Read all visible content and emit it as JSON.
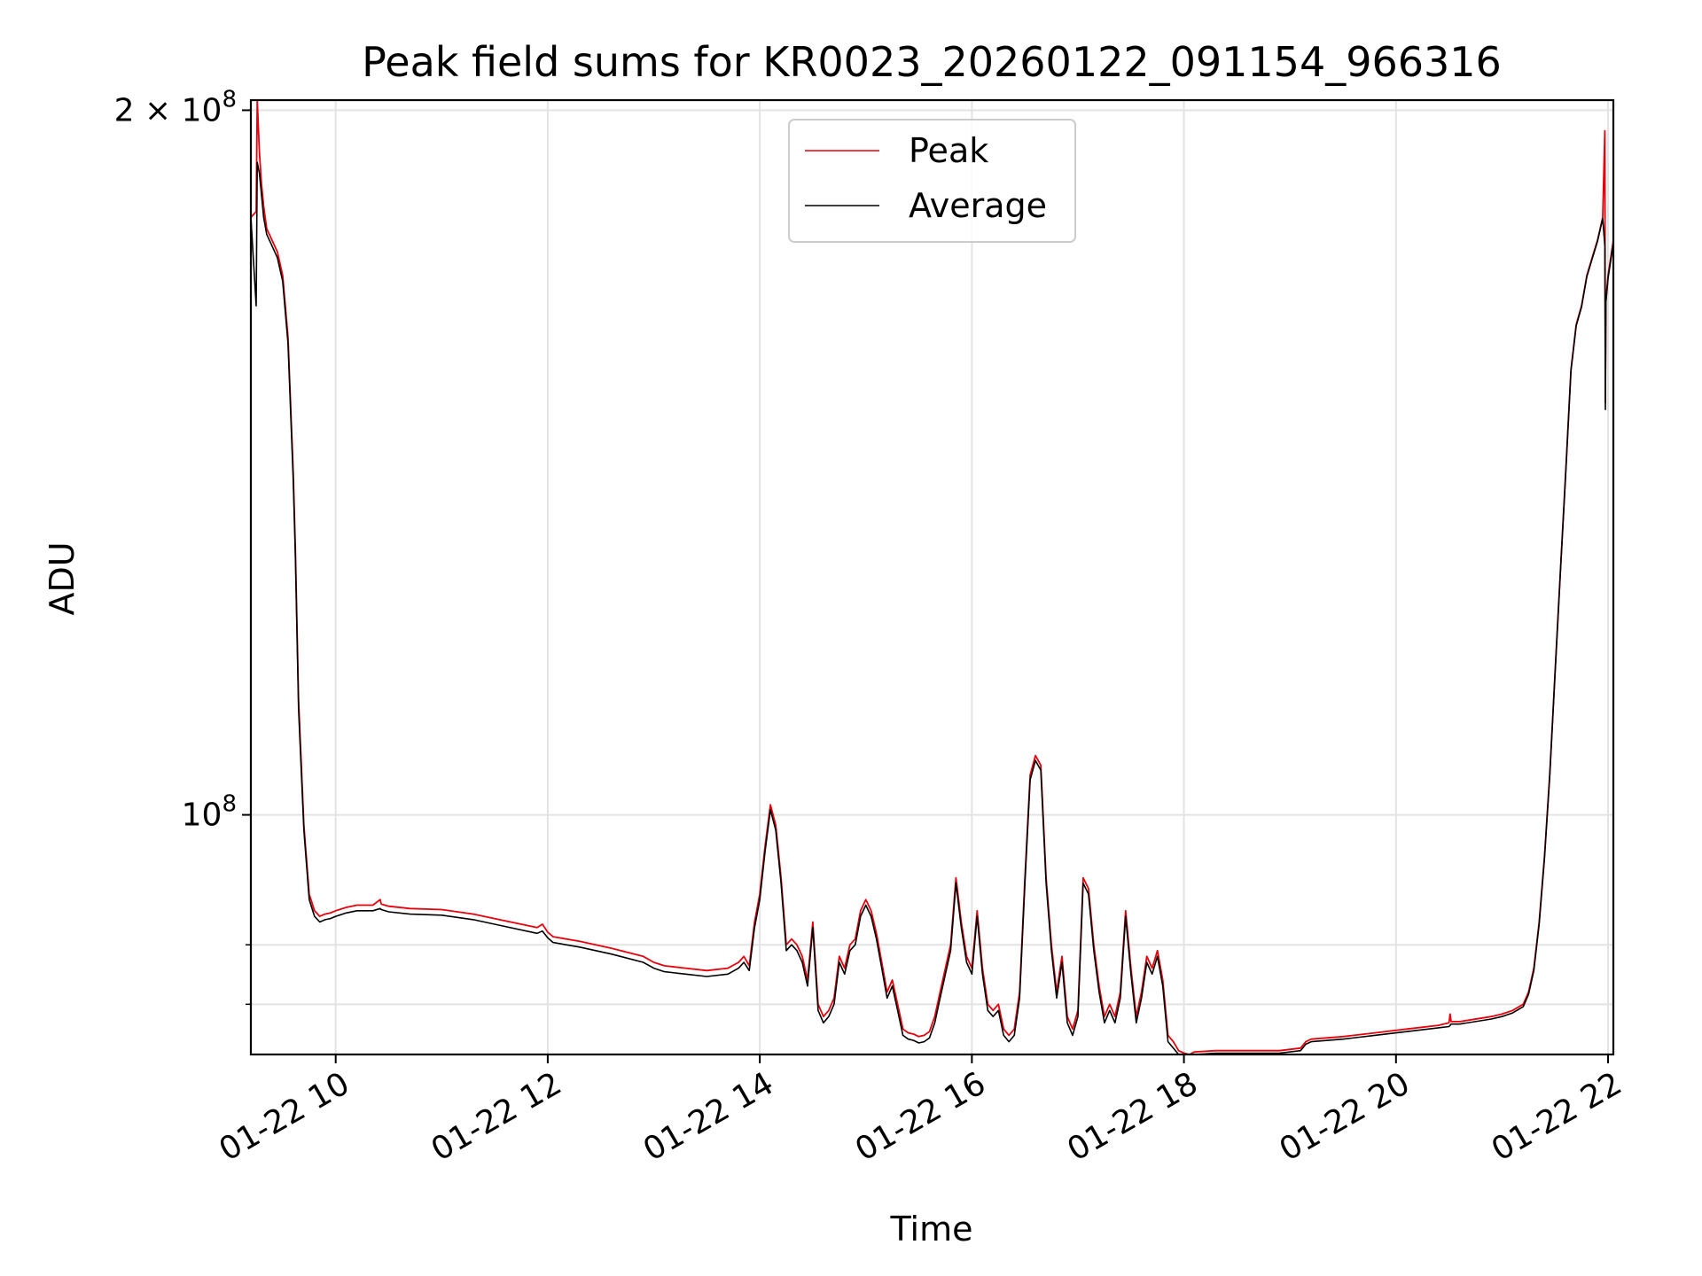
{
  "chart_data": {
    "type": "line",
    "title": "Peak field sums for KR0023_20260122_091154_966316",
    "xlabel": "Time",
    "ylabel": "ADU",
    "yscale": "log",
    "xlim": [
      9.2,
      22.05
    ],
    "ylim": [
      79000000.0,
      202000000.0
    ],
    "grid": true,
    "legend_position": "top-center",
    "x_ticks": [
      {
        "value": 10,
        "label": "01-22 10"
      },
      {
        "value": 12,
        "label": "01-22 12"
      },
      {
        "value": 14,
        "label": "01-22 14"
      },
      {
        "value": 16,
        "label": "01-22 16"
      },
      {
        "value": 18,
        "label": "01-22 18"
      },
      {
        "value": 20,
        "label": "01-22 20"
      },
      {
        "value": 22,
        "label": "01-22 22"
      }
    ],
    "y_major_ticks": [
      {
        "value": 100000000,
        "base": "10",
        "exp": "8",
        "mult": ""
      },
      {
        "value": 200000000,
        "base": "10",
        "exp": "8",
        "mult": "2 × "
      }
    ],
    "y_minor_gridlines": [
      83000000,
      88000000
    ],
    "series": [
      {
        "name": "Peak",
        "color": "#e8000b",
        "x": [
          9.2,
          9.25,
          9.26,
          9.28,
          9.3,
          9.32,
          9.35,
          9.4,
          9.45,
          9.5,
          9.55,
          9.6,
          9.62,
          9.65,
          9.7,
          9.75,
          9.8,
          9.85,
          9.9,
          9.95,
          10.0,
          10.1,
          10.2,
          10.35,
          10.42,
          10.43,
          10.5,
          10.7,
          11.0,
          11.3,
          11.6,
          11.9,
          11.95,
          12.0,
          12.05,
          12.3,
          12.6,
          12.9,
          13.0,
          13.1,
          13.3,
          13.5,
          13.7,
          13.8,
          13.85,
          13.9,
          13.95,
          14.0,
          14.05,
          14.1,
          14.15,
          14.2,
          14.25,
          14.3,
          14.35,
          14.4,
          14.45,
          14.5,
          14.55,
          14.6,
          14.65,
          14.7,
          14.75,
          14.8,
          14.85,
          14.9,
          14.95,
          15.0,
          15.05,
          15.1,
          15.15,
          15.2,
          15.25,
          15.3,
          15.35,
          15.4,
          15.45,
          15.5,
          15.55,
          15.6,
          15.65,
          15.7,
          15.75,
          15.8,
          15.85,
          15.9,
          15.95,
          16.0,
          16.05,
          16.1,
          16.15,
          16.2,
          16.25,
          16.3,
          16.35,
          16.4,
          16.45,
          16.5,
          16.55,
          16.6,
          16.65,
          16.7,
          16.75,
          16.8,
          16.85,
          16.9,
          16.95,
          17.0,
          17.05,
          17.1,
          17.15,
          17.2,
          17.25,
          17.3,
          17.35,
          17.4,
          17.45,
          17.5,
          17.55,
          17.6,
          17.65,
          17.7,
          17.75,
          17.8,
          17.85,
          17.9,
          17.95,
          18.0,
          18.05,
          18.1,
          18.3,
          18.6,
          18.9,
          19.1,
          19.15,
          19.2,
          19.5,
          19.8,
          20.1,
          20.4,
          20.5,
          20.51,
          20.52,
          20.6,
          20.9,
          21.0,
          21.1,
          21.2,
          21.25,
          21.3,
          21.35,
          21.4,
          21.45,
          21.5,
          21.55,
          21.6,
          21.65,
          21.7,
          21.75,
          21.8,
          21.85,
          21.9,
          21.95,
          21.97,
          21.975,
          21.98,
          22.0,
          22.05
        ],
        "y": [
          180000000,
          181000000,
          202000000,
          192000000,
          186000000,
          182000000,
          178000000,
          176000000,
          174000000,
          170000000,
          160000000,
          140000000,
          130000000,
          112000000,
          99000000,
          92500000,
          91000000,
          90500000,
          90700000,
          90800000,
          91000000,
          91300000,
          91500000,
          91500000,
          92000000,
          91600000,
          91400000,
          91200000,
          91100000,
          90700000,
          90100000,
          89500000,
          89800000,
          89100000,
          88700000,
          88300000,
          87700000,
          87000000,
          86500000,
          86200000,
          86000000,
          85800000,
          86000000,
          86500000,
          87000000,
          86200000,
          90000000,
          92500000,
          97000000,
          101000000,
          99000000,
          94000000,
          88000000,
          88500000,
          88000000,
          87000000,
          85000000,
          90000000,
          83000000,
          82000000,
          82500000,
          83500000,
          87000000,
          86000000,
          88000000,
          88500000,
          91000000,
          92000000,
          91000000,
          89000000,
          86500000,
          84000000,
          85000000,
          83000000,
          81000000,
          80700000,
          80600000,
          80400000,
          80500000,
          80800000,
          82000000,
          84000000,
          86000000,
          88000000,
          94000000,
          90000000,
          87000000,
          86000000,
          91000000,
          86000000,
          83000000,
          82500000,
          83000000,
          81000000,
          80500000,
          81000000,
          84000000,
          94000000,
          104000000,
          106000000,
          105000000,
          94000000,
          88000000,
          84000000,
          87000000,
          82000000,
          81000000,
          82500000,
          94000000,
          93000000,
          88000000,
          84500000,
          82000000,
          83000000,
          82000000,
          84000000,
          91000000,
          86000000,
          82000000,
          84000000,
          87000000,
          86000000,
          87500000,
          85000000,
          80500000,
          80000000,
          79300000,
          79100000,
          79000000,
          79200000,
          79300000,
          79300000,
          79300000,
          79500000,
          80000000,
          80200000,
          80400000,
          80700000,
          81000000,
          81300000,
          81500000,
          82200000,
          81600000,
          81600000,
          82000000,
          82200000,
          82500000,
          83000000,
          84000000,
          86000000,
          90000000,
          96000000,
          104000000,
          115000000,
          127000000,
          140000000,
          155000000,
          162000000,
          165000000,
          170000000,
          173000000,
          176000000,
          180000000,
          196000000,
          150000000,
          166000000,
          170000000,
          176000000
        ]
      },
      {
        "name": "Average",
        "color": "#000000",
        "x": [
          9.2,
          9.25,
          9.26,
          9.28,
          9.3,
          9.32,
          9.35,
          9.4,
          9.45,
          9.5,
          9.55,
          9.6,
          9.62,
          9.65,
          9.7,
          9.75,
          9.8,
          9.85,
          9.9,
          9.95,
          10.0,
          10.1,
          10.2,
          10.35,
          10.42,
          10.43,
          10.5,
          10.7,
          11.0,
          11.3,
          11.6,
          11.9,
          11.95,
          12.0,
          12.05,
          12.3,
          12.6,
          12.9,
          13.0,
          13.1,
          13.3,
          13.5,
          13.7,
          13.8,
          13.85,
          13.9,
          13.95,
          14.0,
          14.05,
          14.1,
          14.15,
          14.2,
          14.25,
          14.3,
          14.35,
          14.4,
          14.45,
          14.5,
          14.55,
          14.6,
          14.65,
          14.7,
          14.75,
          14.8,
          14.85,
          14.9,
          14.95,
          15.0,
          15.05,
          15.1,
          15.15,
          15.2,
          15.25,
          15.3,
          15.35,
          15.4,
          15.45,
          15.5,
          15.55,
          15.6,
          15.65,
          15.7,
          15.75,
          15.8,
          15.85,
          15.9,
          15.95,
          16.0,
          16.05,
          16.1,
          16.15,
          16.2,
          16.25,
          16.3,
          16.35,
          16.4,
          16.45,
          16.5,
          16.55,
          16.6,
          16.65,
          16.7,
          16.75,
          16.8,
          16.85,
          16.9,
          16.95,
          17.0,
          17.05,
          17.1,
          17.15,
          17.2,
          17.25,
          17.3,
          17.35,
          17.4,
          17.45,
          17.5,
          17.55,
          17.6,
          17.65,
          17.7,
          17.75,
          17.8,
          17.85,
          17.9,
          17.95,
          18.0,
          18.05,
          18.1,
          18.3,
          18.6,
          18.9,
          19.1,
          19.15,
          19.2,
          19.5,
          19.8,
          20.1,
          20.4,
          20.5,
          20.51,
          20.52,
          20.6,
          20.9,
          21.0,
          21.1,
          21.2,
          21.25,
          21.3,
          21.35,
          21.4,
          21.45,
          21.5,
          21.55,
          21.6,
          21.65,
          21.7,
          21.75,
          21.8,
          21.85,
          21.9,
          21.95,
          21.97,
          21.975,
          21.98,
          22.0,
          22.05
        ],
        "y": [
          180000000,
          165000000,
          190000000,
          188000000,
          184000000,
          180000000,
          177000000,
          175000000,
          173000000,
          169000000,
          159000000,
          139000000,
          129000000,
          111000000,
          98500000,
          92000000,
          90500000,
          90000000,
          90200000,
          90300000,
          90500000,
          90800000,
          91000000,
          91000000,
          91200000,
          91100000,
          90900000,
          90700000,
          90600000,
          90200000,
          89600000,
          89000000,
          89200000,
          88600000,
          88200000,
          87800000,
          87200000,
          86500000,
          86000000,
          85700000,
          85500000,
          85300000,
          85500000,
          86000000,
          86500000,
          85800000,
          89500000,
          92000000,
          96500000,
          100500000,
          98500000,
          93500000,
          87500000,
          88000000,
          87500000,
          86500000,
          84500000,
          89500000,
          82500000,
          81500000,
          82000000,
          83000000,
          86500000,
          85500000,
          87500000,
          88000000,
          90500000,
          91500000,
          90500000,
          88500000,
          86000000,
          83500000,
          84500000,
          82500000,
          80500000,
          80200000,
          80100000,
          79900000,
          80000000,
          80300000,
          81500000,
          83500000,
          85500000,
          87500000,
          93500000,
          89500000,
          86500000,
          85500000,
          90500000,
          85500000,
          82500000,
          82000000,
          82500000,
          80500000,
          80000000,
          80500000,
          83500000,
          93500000,
          103500000,
          105500000,
          104500000,
          93500000,
          87500000,
          83500000,
          86500000,
          81500000,
          80500000,
          82000000,
          93500000,
          92500000,
          87500000,
          84000000,
          81500000,
          82500000,
          81500000,
          83500000,
          90500000,
          85500000,
          81500000,
          83500000,
          86500000,
          85500000,
          87000000,
          84500000,
          80000000,
          79500000,
          79000000,
          78900000,
          78800000,
          79000000,
          79100000,
          79100000,
          79100000,
          79300000,
          79800000,
          80000000,
          80200000,
          80500000,
          80800000,
          81100000,
          81200000,
          81300000,
          81400000,
          81400000,
          81800000,
          82000000,
          82300000,
          82800000,
          83800000,
          85800000,
          89800000,
          95800000,
          103800000,
          114800000,
          126800000,
          139800000,
          154800000,
          161800000,
          164800000,
          169800000,
          172800000,
          175800000,
          179800000,
          175000000,
          149000000,
          165500000,
          169500000,
          175500000
        ]
      }
    ]
  }
}
